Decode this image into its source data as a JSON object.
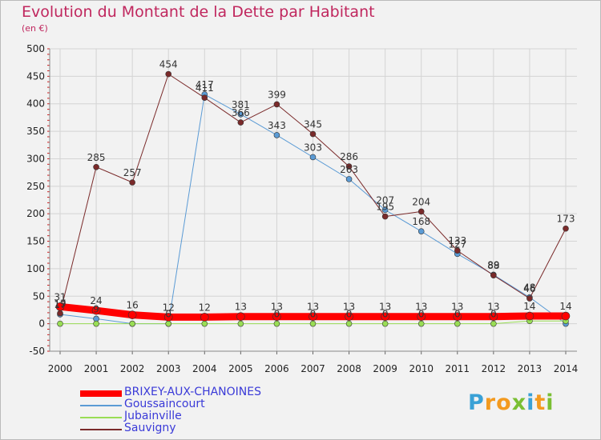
{
  "title": "Evolution du Montant de la Dette par Habitant",
  "subtitle": "(en €)",
  "brand": [
    "P",
    "r",
    "o",
    "x",
    "i",
    "t",
    "i"
  ],
  "brand_colors": [
    "#3aa1d6",
    "#f39a1f",
    "#f39a1f",
    "#7abf33",
    "#3aa1d6",
    "#f39a1f",
    "#7abf33"
  ],
  "chart_data": {
    "type": "line",
    "x": [
      2000,
      2001,
      2002,
      2003,
      2004,
      2005,
      2006,
      2007,
      2008,
      2009,
      2010,
      2011,
      2012,
      2013,
      2014
    ],
    "ylim": [
      -50,
      500
    ],
    "yticks": [
      -50,
      0,
      50,
      100,
      150,
      200,
      250,
      300,
      350,
      400,
      450,
      500
    ],
    "grid": true,
    "legend_position": "bottom-left",
    "series": [
      {
        "name": "BRIXEY-AUX-CHANOINES",
        "color": "#ff0000",
        "values": [
          31,
          24,
          16,
          12,
          12,
          13,
          13,
          13,
          13,
          13,
          13,
          13,
          13,
          14,
          14
        ],
        "labels": [
          "31",
          "24",
          "16",
          "12",
          "12",
          "13",
          "13",
          "13",
          "13",
          "13",
          "13",
          "13",
          "13",
          "14",
          "14"
        ]
      },
      {
        "name": "Goussaincourt",
        "color": "#5b9bd5",
        "values": [
          17,
          9,
          0,
          0,
          417,
          381,
          343,
          303,
          263,
          207,
          168,
          127,
          89,
          48,
          0
        ],
        "labels": [
          "17",
          "9",
          "",
          "",
          "417",
          "381",
          "343",
          "303",
          "263",
          "207",
          "168",
          "127",
          "89",
          "48",
          ""
        ]
      },
      {
        "name": "Jubainville",
        "color": "#99dd55",
        "values": [
          0,
          0,
          0,
          0,
          0,
          0,
          0,
          0,
          0,
          0,
          0,
          0,
          0,
          5,
          5
        ],
        "labels": [
          "",
          "",
          "",
          "0",
          "",
          "",
          "0",
          "0",
          "0",
          "0",
          "0",
          "0",
          "0",
          "",
          ""
        ]
      },
      {
        "name": "Sauvigny",
        "color": "#7a2a2a",
        "values": [
          19,
          285,
          257,
          454,
          411,
          366,
          399,
          345,
          286,
          195,
          204,
          133,
          88,
          46,
          173
        ],
        "labels": [
          "19",
          "285",
          "257",
          "454",
          "411",
          "366",
          "399",
          "345",
          "286",
          "195",
          "204",
          "133",
          "88",
          "46",
          "173"
        ]
      }
    ]
  }
}
